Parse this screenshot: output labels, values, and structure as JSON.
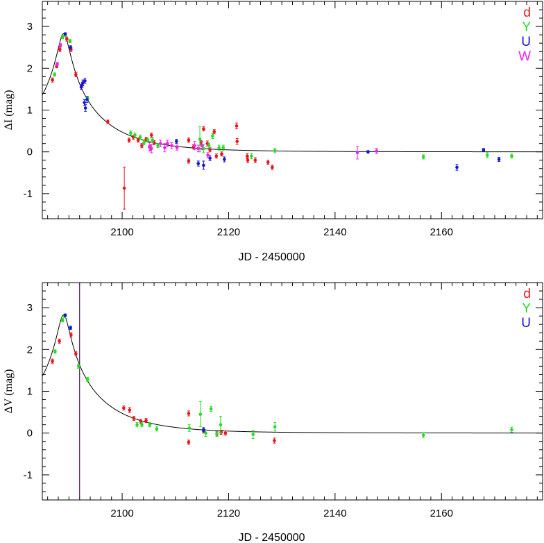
{
  "chart_data": [
    {
      "type": "scatter",
      "panel": "top",
      "xlabel": "JD - 2450000",
      "ylabel": "ΔI (mag)",
      "xlim": [
        2085,
        2179
      ],
      "ylim": [
        -1.6,
        3.6
      ],
      "yaxis_inverted": false,
      "xticks": [
        2100,
        2120,
        2140,
        2160
      ],
      "yticks": [
        3,
        2,
        1,
        0,
        -1
      ],
      "ytick_labels": [
        "3",
        "2",
        "1",
        "0",
        "-1"
      ],
      "legend_position": "top-right",
      "legend": [
        "d",
        "Y",
        "U",
        "W"
      ],
      "model_curve": {
        "t0": 2089.0,
        "u0": 0.074,
        "tE": 14.0
      },
      "series": [
        {
          "name": "d",
          "color": "#e8141b",
          "points": [
            [
              2086.9,
              1.72,
              0.05
            ],
            [
              2087.7,
              2.05,
              0.04
            ],
            [
              2088.3,
              2.45,
              0.05
            ],
            [
              2089.6,
              2.7,
              0.05
            ],
            [
              2090.4,
              2.45,
              0.05
            ],
            [
              2091.3,
              1.85,
              0.05
            ],
            [
              2092.5,
              1.6,
              0.06
            ],
            [
              2097.3,
              0.72,
              0.04
            ],
            [
              2100.4,
              -0.87,
              0.5
            ],
            [
              2101.3,
              0.28,
              0.05
            ],
            [
              2102.1,
              0.35,
              0.05
            ],
            [
              2103.0,
              0.28,
              0.05
            ],
            [
              2103.7,
              0.15,
              0.05
            ],
            [
              2104.5,
              0.3,
              0.05
            ],
            [
              2105.5,
              0.4,
              0.05
            ],
            [
              2105.3,
              0.1,
              0.06
            ],
            [
              2106.0,
              0.22,
              0.05
            ],
            [
              2112.5,
              0.28,
              0.05
            ],
            [
              2112.5,
              -0.22,
              0.05
            ],
            [
              2113.4,
              0.12,
              0.05
            ],
            [
              2114.8,
              0.22,
              0.05
            ],
            [
              2115.3,
              0.55,
              0.05
            ],
            [
              2116.0,
              0.2,
              0.06
            ],
            [
              2116.5,
              0.05,
              0.05
            ],
            [
              2117.3,
              0.48,
              0.05
            ],
            [
              2117.7,
              -0.1,
              0.05
            ],
            [
              2118.7,
              -0.05,
              0.05
            ],
            [
              2121.5,
              0.62,
              0.07
            ],
            [
              2121.6,
              0.25,
              0.07
            ],
            [
              2123.5,
              -0.1,
              0.06
            ],
            [
              2123.6,
              -0.2,
              0.06
            ],
            [
              2125.0,
              -0.2,
              0.06
            ],
            [
              2127.4,
              -0.25,
              0.05
            ],
            [
              2128.2,
              -0.37,
              0.05
            ]
          ]
        },
        {
          "name": "Y",
          "color": "#22dd22",
          "points": [
            [
              2087.3,
              1.85,
              0.04
            ],
            [
              2088.8,
              2.75,
              0.04
            ],
            [
              2089.3,
              2.8,
              0.04
            ],
            [
              2090.2,
              2.65,
              0.04
            ],
            [
              2093.5,
              1.28,
              0.05
            ],
            [
              2101.6,
              0.45,
              0.05
            ],
            [
              2102.4,
              0.4,
              0.05
            ],
            [
              2103.4,
              0.35,
              0.05
            ],
            [
              2104.1,
              0.22,
              0.05
            ],
            [
              2104.8,
              0.28,
              0.05
            ],
            [
              2105.7,
              0.28,
              0.05
            ],
            [
              2106.7,
              0.15,
              0.05
            ],
            [
              2114.6,
              0.3,
              0.3
            ],
            [
              2115.3,
              0.08,
              0.1
            ],
            [
              2116.3,
              0.15,
              0.06
            ],
            [
              2117.0,
              0.38,
              0.06
            ],
            [
              2118.2,
              0.1,
              0.06
            ],
            [
              2119.0,
              0.1,
              0.06
            ],
            [
              2124.3,
              -0.1,
              0.06
            ],
            [
              2128.7,
              0.03,
              0.05
            ],
            [
              2156.6,
              -0.12,
              0.05
            ],
            [
              2168.6,
              -0.08,
              0.06
            ],
            [
              2173.2,
              -0.1,
              0.05
            ]
          ]
        },
        {
          "name": "U",
          "color": "#1414d8",
          "points": [
            [
              2089.3,
              2.82,
              0.03
            ],
            [
              2090.3,
              2.5,
              0.04
            ],
            [
              2092.3,
              1.55,
              0.06
            ],
            [
              2092.6,
              1.65,
              0.07
            ],
            [
              2093.0,
              1.7,
              0.06
            ],
            [
              2092.9,
              1.18,
              0.07
            ],
            [
              2093.1,
              1.05,
              0.08
            ],
            [
              2093.4,
              1.25,
              0.07
            ],
            [
              2110.2,
              0.25,
              0.05
            ],
            [
              2114.3,
              -0.28,
              0.06
            ],
            [
              2115.3,
              -0.32,
              0.1
            ],
            [
              2116.5,
              -0.15,
              0.06
            ],
            [
              2119.2,
              -0.18,
              0.06
            ],
            [
              2146.2,
              0.0,
              0.03
            ],
            [
              2162.9,
              -0.37,
              0.07
            ],
            [
              2167.9,
              0.05,
              0.03
            ],
            [
              2170.8,
              -0.18,
              0.05
            ]
          ]
        },
        {
          "name": "W",
          "color": "#ee22ee",
          "points": [
            [
              2087.8,
              2.1,
              0.04
            ],
            [
              2088.4,
              2.55,
              0.04
            ],
            [
              2105.1,
              0.12,
              0.1
            ],
            [
              2105.5,
              0.08,
              0.1
            ],
            [
              2107.2,
              0.2,
              0.08
            ],
            [
              2108.0,
              0.1,
              0.1
            ],
            [
              2108.5,
              0.2,
              0.08
            ],
            [
              2109.3,
              0.15,
              0.07
            ],
            [
              2110.3,
              0.1,
              0.06
            ],
            [
              2113.6,
              0.15,
              0.1
            ],
            [
              2114.3,
              0.08,
              0.08
            ],
            [
              2115.0,
              0.15,
              0.1
            ],
            [
              2116.1,
              -0.08,
              0.06
            ],
            [
              2144.2,
              -0.02,
              0.15
            ],
            [
              2147.8,
              0.02,
              0.06
            ]
          ]
        }
      ]
    },
    {
      "type": "scatter",
      "panel": "bottom",
      "xlabel": "JD - 2450000",
      "ylabel": "ΔV (mag)",
      "xlim": [
        2085,
        2179
      ],
      "ylim": [
        -1.6,
        3.6
      ],
      "xticks": [
        2100,
        2120,
        2140,
        2160
      ],
      "yticks": [
        3,
        2,
        1,
        0,
        -1
      ],
      "ytick_labels": [
        "3",
        "2",
        "1",
        "0",
        "-1"
      ],
      "legend_position": "top-right",
      "legend": [
        "d",
        "Y",
        "U"
      ],
      "vertical_line_x": 2092.0,
      "model_curve": {
        "t0": 2089.0,
        "u0": 0.074,
        "tE": 14.0
      },
      "series": [
        {
          "name": "d",
          "color": "#e8141b",
          "points": [
            [
              2086.9,
              1.72,
              0.05
            ],
            [
              2088.2,
              2.2,
              0.05
            ],
            [
              2090.4,
              2.35,
              0.05
            ],
            [
              2091.3,
              1.9,
              0.05
            ],
            [
              2100.3,
              0.6,
              0.05
            ],
            [
              2101.4,
              0.55,
              0.06
            ],
            [
              2102.2,
              0.35,
              0.05
            ],
            [
              2103.5,
              0.28,
              0.05
            ],
            [
              2104.5,
              0.3,
              0.05
            ],
            [
              2112.5,
              0.47,
              0.06
            ],
            [
              2112.5,
              -0.22,
              0.05
            ],
            [
              2115.3,
              0.05,
              0.05
            ],
            [
              2117.8,
              -0.02,
              0.05
            ],
            [
              2118.6,
              0.02,
              0.05
            ],
            [
              2119.4,
              0.0,
              0.05
            ],
            [
              2128.6,
              -0.18,
              0.06
            ]
          ]
        },
        {
          "name": "Y",
          "color": "#22dd22",
          "points": [
            [
              2087.4,
              1.95,
              0.04
            ],
            [
              2088.8,
              2.7,
              0.04
            ],
            [
              2089.2,
              2.8,
              0.04
            ],
            [
              2091.8,
              1.6,
              0.05
            ],
            [
              2093.5,
              1.28,
              0.05
            ],
            [
              2102.8,
              0.2,
              0.05
            ],
            [
              2103.7,
              0.2,
              0.05
            ],
            [
              2105.2,
              0.2,
              0.05
            ],
            [
              2106.5,
              0.1,
              0.05
            ],
            [
              2112.6,
              0.12,
              0.08
            ],
            [
              2114.7,
              0.45,
              0.3
            ],
            [
              2115.7,
              0.0,
              0.08
            ],
            [
              2116.7,
              0.58,
              0.06
            ],
            [
              2117.8,
              -0.02,
              0.06
            ],
            [
              2118.5,
              0.2,
              0.2
            ],
            [
              2124.6,
              -0.03,
              0.1
            ],
            [
              2128.7,
              0.15,
              0.1
            ],
            [
              2156.6,
              -0.05,
              0.06
            ],
            [
              2173.2,
              0.08,
              0.06
            ]
          ]
        },
        {
          "name": "U",
          "color": "#1414d8",
          "points": [
            [
              2089.3,
              2.82,
              0.03
            ],
            [
              2090.3,
              2.52,
              0.04
            ],
            [
              2115.3,
              0.08,
              0.05
            ]
          ]
        }
      ]
    }
  ]
}
